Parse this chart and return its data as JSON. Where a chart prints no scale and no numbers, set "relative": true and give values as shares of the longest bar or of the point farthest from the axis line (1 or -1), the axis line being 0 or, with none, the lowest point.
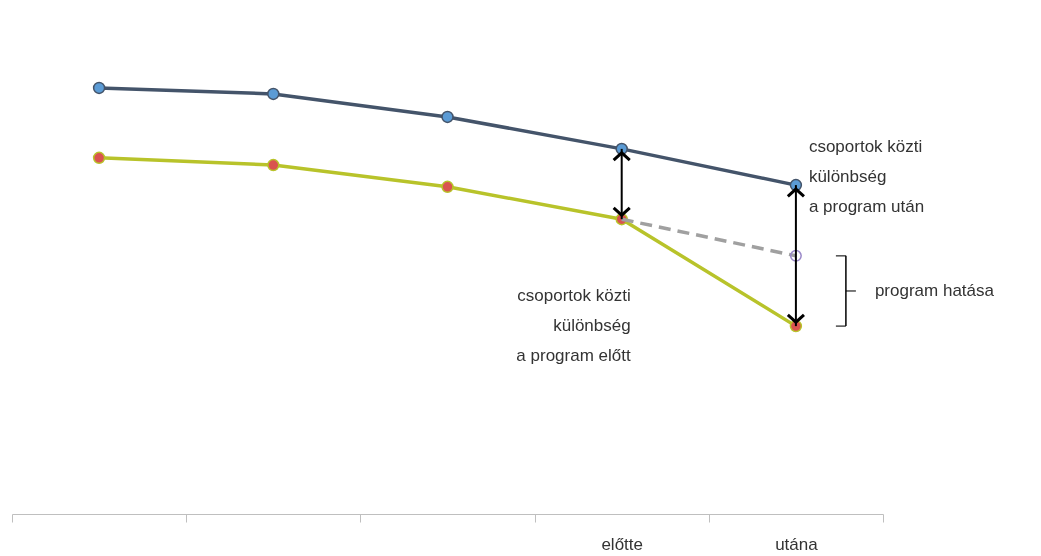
{
  "chart_data": {
    "type": "line",
    "relative": true,
    "grid": false,
    "marker": "circle",
    "categories": [
      null,
      null,
      null,
      "előtte",
      "utána"
    ],
    "series": [
      {
        "color": "#44546a",
        "colors": [
          "#5b9bd5",
          "#5b9bd5",
          "#5b9bd5",
          "#5b9bd5",
          "#5b9bd5"
        ],
        "values": [
          1,
          0.986,
          0.932,
          0.857,
          0.772
        ]
      },
      {
        "color": "#b8c32a",
        "colors": [
          "#d9534f",
          "#d9534f",
          "#d9534f",
          "#d9534f",
          "#d9534f"
        ],
        "values": [
          0.836,
          0.819,
          0.768,
          0.692,
          0.441
        ]
      },
      {
        "color": "#a0a0a0",
        "line_style": "dashed",
        "marker": "none",
        "values": [
          null,
          null,
          null,
          0.692,
          0.606
        ]
      },
      {
        "type": "scatter",
        "color": "#9a88c8",
        "values": [
          null,
          null,
          null,
          null,
          0.606
        ]
      }
    ],
    "annotations": [
      "csoportok közti\nkülönbség\na program után",
      "csoportok közti\nkülönbség\na program előtt",
      "program hatása"
    ]
  }
}
